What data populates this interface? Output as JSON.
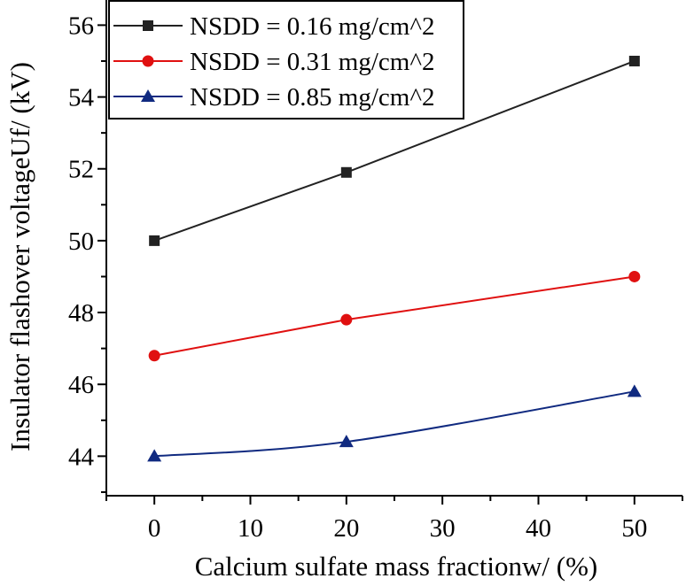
{
  "chart_data": {
    "type": "line",
    "title": "",
    "xlabel": "Calcium sulfate mass fractionw/ (%)",
    "ylabel": "Insulator flashover voltageUf/ (kV)",
    "xlim": [
      -5,
      55
    ],
    "ylim": [
      42.9,
      56.7
    ],
    "xticks": [
      0,
      10,
      20,
      30,
      40,
      50
    ],
    "yticks": [
      44,
      46,
      48,
      50,
      52,
      54,
      56
    ],
    "grid": false,
    "legend_position": "top-left",
    "x": [
      0,
      20,
      50
    ],
    "series": [
      {
        "name": "NSDD = 0.16 mg/cm^2",
        "values": [
          50.0,
          51.9,
          55.0
        ],
        "color": "#222222",
        "marker": "square",
        "smooth": false
      },
      {
        "name": "NSDD = 0.31 mg/cm^2",
        "values": [
          46.8,
          47.8,
          49.0
        ],
        "color": "#e01010",
        "marker": "circle",
        "smooth": false
      },
      {
        "name": "NSDD = 0.85 mg/cm^2",
        "values": [
          44.0,
          44.4,
          45.8
        ],
        "color": "#102a80",
        "marker": "triangle",
        "smooth": true
      }
    ]
  }
}
